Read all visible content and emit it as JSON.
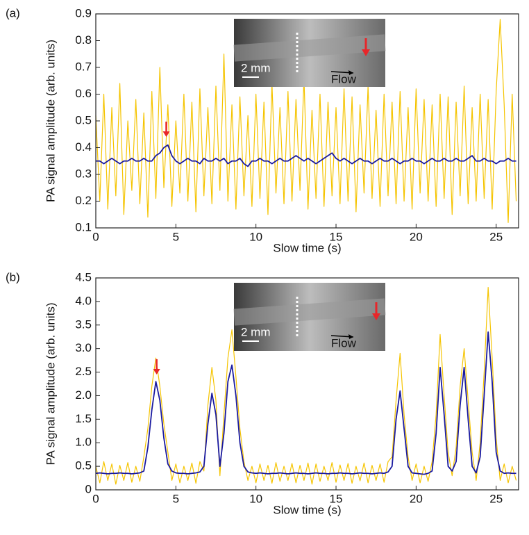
{
  "chart_data": [
    {
      "type": "line",
      "panel_label": "(a)",
      "xlabel": "Slow time (s)",
      "ylabel": "PA signal amplitude (arb. units)",
      "inset": {
        "scale_label": "2 mm",
        "flow_label": "Flow"
      },
      "x": [
        0,
        0.25,
        0.5,
        0.75,
        1,
        1.25,
        1.5,
        1.75,
        2,
        2.25,
        2.5,
        2.75,
        3,
        3.25,
        3.5,
        3.75,
        4,
        4.25,
        4.5,
        4.75,
        5,
        5.25,
        5.5,
        5.75,
        6,
        6.25,
        6.5,
        6.75,
        7,
        7.25,
        7.5,
        7.75,
        8,
        8.25,
        8.5,
        8.75,
        9,
        9.25,
        9.5,
        9.75,
        10,
        10.25,
        10.5,
        10.75,
        11,
        11.25,
        11.5,
        11.75,
        12,
        12.25,
        12.5,
        12.75,
        13,
        13.25,
        13.5,
        13.75,
        14,
        14.25,
        14.5,
        14.75,
        15,
        15.25,
        15.5,
        15.75,
        16,
        16.25,
        16.5,
        16.75,
        17,
        17.25,
        17.5,
        17.75,
        18,
        18.25,
        18.5,
        18.75,
        19,
        19.25,
        19.5,
        19.75,
        20,
        20.25,
        20.5,
        20.75,
        21,
        21.25,
        21.5,
        21.75,
        22,
        22.25,
        22.5,
        22.75,
        23,
        23.25,
        23.5,
        23.75,
        24,
        24.25,
        24.5,
        24.75,
        25,
        25.25,
        25.5,
        25.75,
        26,
        26.25
      ],
      "series": [
        {
          "color": "#f5c400",
          "values": [
            0.52,
            0.2,
            0.6,
            0.17,
            0.55,
            0.22,
            0.64,
            0.15,
            0.5,
            0.24,
            0.58,
            0.19,
            0.53,
            0.14,
            0.61,
            0.21,
            0.7,
            0.25,
            0.56,
            0.18,
            0.5,
            0.23,
            0.6,
            0.2,
            0.57,
            0.16,
            0.62,
            0.22,
            0.55,
            0.19,
            0.63,
            0.24,
            0.75,
            0.2,
            0.56,
            0.17,
            0.59,
            0.22,
            0.52,
            0.18,
            0.6,
            0.21,
            0.57,
            0.15,
            0.64,
            0.23,
            0.55,
            0.19,
            0.61,
            0.2,
            0.58,
            0.24,
            0.66,
            0.17,
            0.54,
            0.21,
            0.6,
            0.18,
            0.57,
            0.22,
            0.55,
            0.19,
            0.62,
            0.2,
            0.59,
            0.16,
            0.56,
            0.23,
            0.63,
            0.21,
            0.54,
            0.18,
            0.6,
            0.22,
            0.57,
            0.19,
            0.61,
            0.2,
            0.55,
            0.17,
            0.62,
            0.23,
            0.58,
            0.2,
            0.56,
            0.18,
            0.6,
            0.21,
            0.59,
            0.15,
            0.57,
            0.22,
            0.63,
            0.19,
            0.55,
            0.2,
            0.6,
            0.21,
            0.58,
            0.17,
            0.61,
            0.88,
            0.56,
            0.12,
            0.6,
            0.2
          ]
        },
        {
          "color": "#1a1aa0",
          "values": [
            0.35,
            0.35,
            0.34,
            0.35,
            0.36,
            0.35,
            0.34,
            0.35,
            0.35,
            0.36,
            0.35,
            0.35,
            0.36,
            0.35,
            0.35,
            0.37,
            0.38,
            0.4,
            0.41,
            0.37,
            0.35,
            0.34,
            0.35,
            0.36,
            0.35,
            0.35,
            0.34,
            0.36,
            0.35,
            0.35,
            0.36,
            0.35,
            0.36,
            0.34,
            0.35,
            0.35,
            0.36,
            0.34,
            0.33,
            0.35,
            0.35,
            0.36,
            0.35,
            0.35,
            0.34,
            0.35,
            0.36,
            0.35,
            0.35,
            0.36,
            0.37,
            0.36,
            0.35,
            0.36,
            0.35,
            0.34,
            0.35,
            0.36,
            0.37,
            0.38,
            0.36,
            0.35,
            0.36,
            0.35,
            0.34,
            0.35,
            0.36,
            0.35,
            0.35,
            0.34,
            0.35,
            0.36,
            0.35,
            0.35,
            0.36,
            0.35,
            0.34,
            0.35,
            0.35,
            0.36,
            0.35,
            0.35,
            0.34,
            0.35,
            0.36,
            0.35,
            0.35,
            0.36,
            0.35,
            0.35,
            0.36,
            0.35,
            0.35,
            0.36,
            0.37,
            0.35,
            0.35,
            0.36,
            0.35,
            0.35,
            0.34,
            0.35,
            0.35,
            0.36,
            0.35,
            0.35
          ]
        }
      ],
      "xlim": [
        0,
        26.4
      ],
      "ylim": [
        0.1,
        0.9
      ],
      "xticks": [
        0,
        5,
        10,
        15,
        20,
        25
      ],
      "yticks": [
        0.1,
        0.2,
        0.3,
        0.4,
        0.5,
        0.6,
        0.7,
        0.8,
        0.9
      ]
    },
    {
      "type": "line",
      "panel_label": "(b)",
      "xlabel": "Slow time (s)",
      "ylabel": "PA signal amplitude (arb. units)",
      "inset": {
        "scale_label": "2 mm",
        "flow_label": "Flow"
      },
      "x": [
        0,
        0.25,
        0.5,
        0.75,
        1,
        1.25,
        1.5,
        1.75,
        2,
        2.25,
        2.5,
        2.75,
        3,
        3.25,
        3.5,
        3.75,
        4,
        4.25,
        4.5,
        4.75,
        5,
        5.25,
        5.5,
        5.75,
        6,
        6.25,
        6.5,
        6.75,
        7,
        7.25,
        7.5,
        7.75,
        8,
        8.25,
        8.5,
        8.75,
        9,
        9.25,
        9.5,
        9.75,
        10,
        10.25,
        10.5,
        10.75,
        11,
        11.25,
        11.5,
        11.75,
        12,
        12.25,
        12.5,
        12.75,
        13,
        13.25,
        13.5,
        13.75,
        14,
        14.25,
        14.5,
        14.75,
        15,
        15.25,
        15.5,
        15.75,
        16,
        16.25,
        16.5,
        16.75,
        17,
        17.25,
        17.5,
        17.75,
        18,
        18.25,
        18.5,
        18.75,
        19,
        19.25,
        19.5,
        19.75,
        20,
        20.25,
        20.5,
        20.75,
        21,
        21.25,
        21.5,
        21.75,
        22,
        22.25,
        22.5,
        22.75,
        23,
        23.25,
        23.5,
        23.75,
        24,
        24.25,
        24.5,
        24.75,
        25,
        25.25,
        25.5,
        25.75,
        26,
        26.25
      ],
      "series": [
        {
          "color": "#f5c400",
          "values": [
            0.5,
            0.15,
            0.6,
            0.2,
            0.55,
            0.12,
            0.52,
            0.2,
            0.58,
            0.16,
            0.5,
            0.18,
            0.7,
            1.3,
            2.2,
            2.8,
            2.2,
            1.4,
            0.8,
            0.2,
            0.55,
            0.15,
            0.5,
            0.2,
            0.57,
            0.14,
            0.6,
            0.4,
            1.8,
            2.6,
            1.9,
            0.3,
            1.6,
            2.8,
            3.4,
            2.4,
            1.3,
            0.6,
            0.2,
            0.5,
            0.15,
            0.55,
            0.2,
            0.52,
            0.14,
            0.58,
            0.18,
            0.5,
            0.2,
            0.56,
            0.15,
            0.52,
            0.2,
            0.57,
            0.12,
            0.55,
            0.18,
            0.5,
            0.2,
            0.58,
            0.16,
            0.53,
            0.2,
            0.56,
            0.14,
            0.5,
            0.19,
            0.57,
            0.15,
            0.52,
            0.2,
            0.55,
            0.16,
            0.6,
            0.7,
            1.9,
            2.9,
            1.6,
            0.7,
            0.2,
            0.55,
            0.15,
            0.5,
            0.18,
            0.6,
            1.6,
            3.3,
            2.0,
            0.8,
            0.3,
            0.9,
            2.2,
            3.0,
            1.9,
            0.8,
            0.2,
            1.0,
            2.5,
            4.3,
            2.8,
            1.1,
            0.2,
            0.55,
            0.15,
            0.5,
            0.2
          ]
        },
        {
          "color": "#1a1aa0",
          "values": [
            0.35,
            0.36,
            0.35,
            0.34,
            0.35,
            0.35,
            0.36,
            0.35,
            0.35,
            0.34,
            0.35,
            0.36,
            0.4,
            0.9,
            1.7,
            2.3,
            1.9,
            1.1,
            0.55,
            0.4,
            0.36,
            0.35,
            0.35,
            0.34,
            0.35,
            0.36,
            0.38,
            0.5,
            1.4,
            2.05,
            1.6,
            0.5,
            1.2,
            2.3,
            2.65,
            2.0,
            1.0,
            0.5,
            0.38,
            0.36,
            0.35,
            0.36,
            0.35,
            0.34,
            0.35,
            0.35,
            0.36,
            0.35,
            0.34,
            0.35,
            0.36,
            0.35,
            0.35,
            0.34,
            0.35,
            0.36,
            0.35,
            0.35,
            0.34,
            0.35,
            0.35,
            0.36,
            0.35,
            0.35,
            0.34,
            0.35,
            0.36,
            0.35,
            0.35,
            0.34,
            0.35,
            0.36,
            0.35,
            0.38,
            0.5,
            1.5,
            2.1,
            1.3,
            0.5,
            0.36,
            0.35,
            0.34,
            0.33,
            0.35,
            0.4,
            1.2,
            2.6,
            1.6,
            0.5,
            0.4,
            0.6,
            1.8,
            2.6,
            1.5,
            0.5,
            0.36,
            0.7,
            2.0,
            3.35,
            2.3,
            0.8,
            0.4,
            0.35,
            0.36,
            0.35,
            0.35
          ]
        }
      ],
      "xlim": [
        0,
        26.4
      ],
      "ylim": [
        0,
        4.5
      ],
      "xticks": [
        0,
        5,
        10,
        15,
        20,
        25
      ],
      "yticks": [
        0,
        0.5,
        {
          "value": 1,
          "label": "1.0"
        },
        1.5,
        {
          "value": 2,
          "label": "2.0"
        },
        2.5,
        {
          "value": 3,
          "label": "3.0"
        },
        3.5,
        {
          "value": 4,
          "label": "4.0"
        },
        4.5
      ]
    }
  ]
}
